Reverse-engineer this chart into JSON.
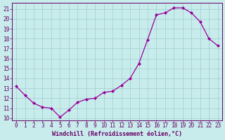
{
  "x": [
    0,
    1,
    2,
    3,
    4,
    5,
    6,
    7,
    8,
    9,
    10,
    11,
    12,
    13,
    14,
    15,
    16,
    17,
    18,
    19,
    20,
    21,
    22,
    23
  ],
  "y": [
    13.2,
    12.3,
    11.5,
    11.1,
    11.0,
    10.1,
    10.8,
    11.6,
    11.9,
    12.0,
    12.6,
    12.7,
    13.3,
    14.0,
    15.5,
    17.9,
    20.4,
    20.6,
    21.1,
    21.1,
    20.6,
    19.7,
    18.0,
    17.3
  ],
  "line_color": "#990099",
  "marker": "D",
  "marker_size": 2.0,
  "bg_color": "#c8ecec",
  "grid_color": "#a0cccc",
  "xlabel": "Windchill (Refroidissement éolien,°C)",
  "ylim": [
    9.8,
    21.6
  ],
  "xlim": [
    -0.5,
    23.5
  ],
  "yticks": [
    10,
    11,
    12,
    13,
    14,
    15,
    16,
    17,
    18,
    19,
    20,
    21
  ],
  "xticks": [
    0,
    1,
    2,
    3,
    4,
    5,
    6,
    7,
    8,
    9,
    10,
    11,
    12,
    13,
    14,
    15,
    16,
    17,
    18,
    19,
    20,
    21,
    22,
    23
  ],
  "tick_color": "#660066",
  "label_color": "#660066",
  "axis_color": "#660066",
  "tick_fontsize": 5.5,
  "xlabel_fontsize": 6.0,
  "linewidth": 0.9
}
